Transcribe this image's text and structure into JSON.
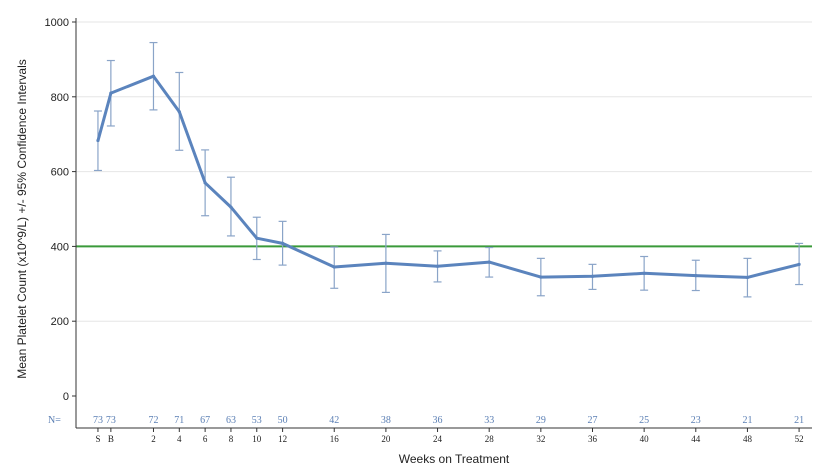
{
  "chart_data": {
    "type": "line",
    "xlabel": "Weeks on Treatment",
    "ylabel": "Mean Platelet Count (x10^9/L) +/- 95% Confidence Intervals",
    "ylim": [
      0,
      1000
    ],
    "yticks": [
      0,
      200,
      400,
      600,
      800,
      1000
    ],
    "grid": true,
    "categories": [
      "S",
      "B",
      "2",
      "4",
      "6",
      "8",
      "10",
      "12",
      "16",
      "20",
      "24",
      "28",
      "32",
      "36",
      "40",
      "44",
      "48",
      "52"
    ],
    "x": [
      -2.3,
      -1.3,
      2,
      4,
      6,
      8,
      10,
      12,
      16,
      20,
      24,
      28,
      32,
      36,
      40,
      44,
      48,
      52
    ],
    "series": [
      {
        "values": [
          683,
          810,
          855,
          760,
          570,
          505,
          422,
          408,
          345,
          355,
          347,
          358,
          318,
          320,
          328,
          322,
          317,
          352
        ],
        "ci_low": [
          603,
          722,
          765,
          657,
          482,
          428,
          365,
          350,
          288,
          277,
          305,
          318,
          268,
          285,
          283,
          282,
          265,
          298
        ],
        "ci_high": [
          762,
          897,
          945,
          865,
          658,
          585,
          478,
          467,
          398,
          432,
          388,
          397,
          368,
          352,
          373,
          363,
          368,
          408
        ]
      }
    ],
    "reference_line": 400,
    "reference_color": "#3a9a3a",
    "line_color": "#5b84bd",
    "n_label": "N=",
    "n_values": [
      "73",
      "73",
      "72",
      "71",
      "67",
      "63",
      "53",
      "50",
      "42",
      "38",
      "36",
      "33",
      "29",
      "27",
      "25",
      "23",
      "21",
      "21"
    ]
  }
}
